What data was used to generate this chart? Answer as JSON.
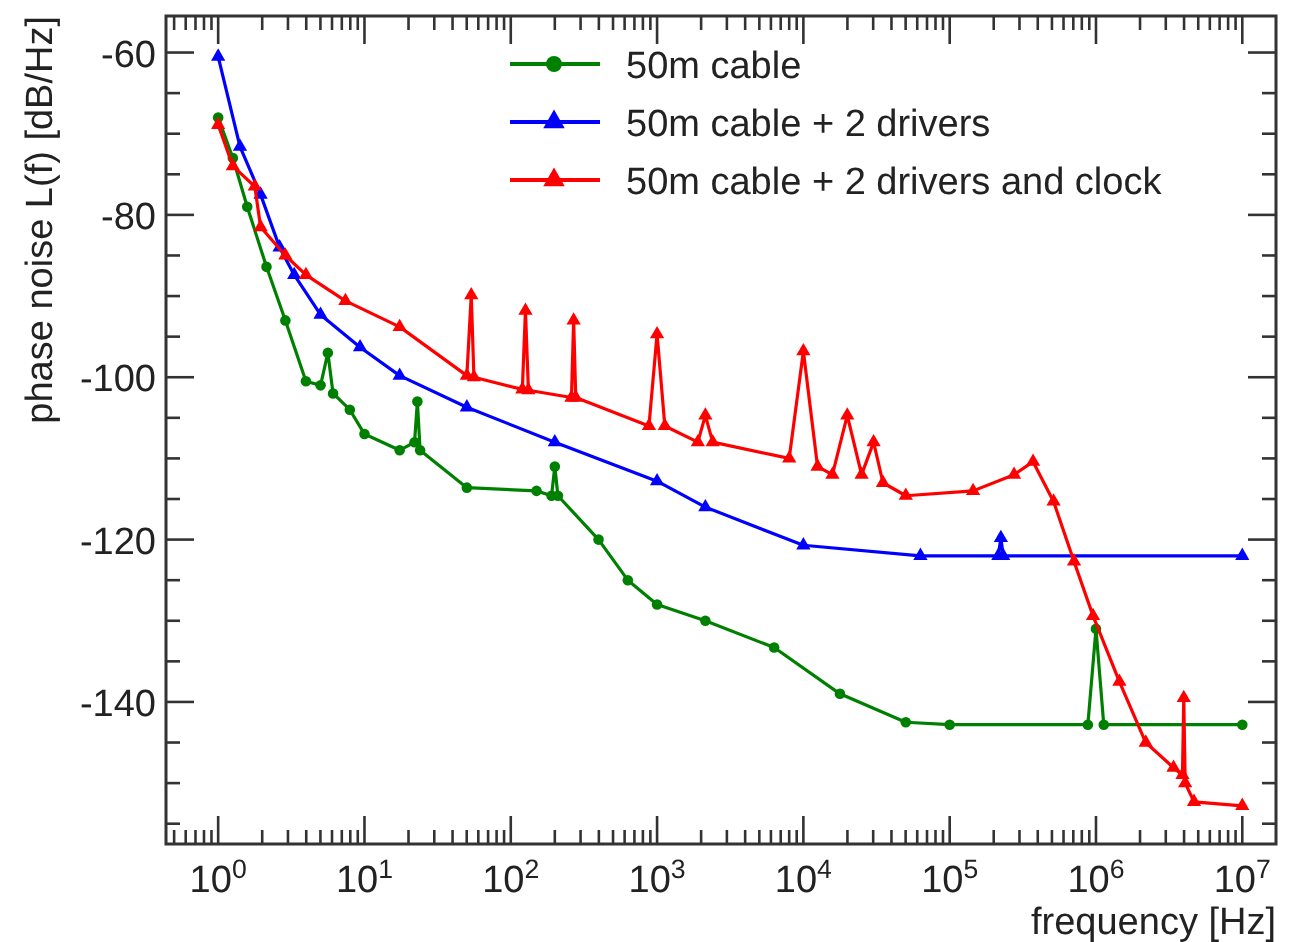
{
  "chart_data": {
    "type": "line",
    "xlabel": "frequency [Hz]",
    "ylabel": "phase noise L(f) [dB/Hz]",
    "log": "x",
    "xlim": [
      0.44,
      17000000
    ],
    "ylim": [
      -157.5,
      -55.5
    ],
    "xticks": [
      {
        "value": 0.5,
        "label": null
      },
      {
        "value": 0.6,
        "label": null
      },
      {
        "value": 0.7,
        "label": null
      },
      {
        "value": 0.8,
        "label": null
      },
      {
        "value": 0.9,
        "label": null
      },
      {
        "value": 1,
        "label": "10$^{0}$"
      },
      {
        "value": 2,
        "label": null
      },
      {
        "value": 3,
        "label": null
      },
      {
        "value": 4,
        "label": null
      },
      {
        "value": 5,
        "label": null
      },
      {
        "value": 6,
        "label": null
      },
      {
        "value": 7,
        "label": null
      },
      {
        "value": 8,
        "label": null
      },
      {
        "value": 9,
        "label": null
      },
      {
        "value": 10,
        "label": "10$^{1}$"
      },
      {
        "value": 20,
        "label": null
      },
      {
        "value": 30,
        "label": null
      },
      {
        "value": 40,
        "label": null
      },
      {
        "value": 50,
        "label": null
      },
      {
        "value": 60,
        "label": null
      },
      {
        "value": 70,
        "label": null
      },
      {
        "value": 80,
        "label": null
      },
      {
        "value": 90,
        "label": null
      },
      {
        "value": 100,
        "label": "10$^{2}$"
      },
      {
        "value": 200,
        "label": null
      },
      {
        "value": 300,
        "label": null
      },
      {
        "value": 400,
        "label": null
      },
      {
        "value": 500,
        "label": null
      },
      {
        "value": 600,
        "label": null
      },
      {
        "value": 700,
        "label": null
      },
      {
        "value": 800,
        "label": null
      },
      {
        "value": 900,
        "label": null
      },
      {
        "value": 1000,
        "label": "10$^{3}$"
      },
      {
        "value": 2000,
        "label": null
      },
      {
        "value": 3000,
        "label": null
      },
      {
        "value": 4000,
        "label": null
      },
      {
        "value": 5000,
        "label": null
      },
      {
        "value": 6000,
        "label": null
      },
      {
        "value": 7000,
        "label": null
      },
      {
        "value": 8000,
        "label": null
      },
      {
        "value": 9000,
        "label": null
      },
      {
        "value": 10000,
        "label": "10$^{4}$"
      },
      {
        "value": 20000,
        "label": null
      },
      {
        "value": 30000,
        "label": null
      },
      {
        "value": 40000,
        "label": null
      },
      {
        "value": 50000,
        "label": null
      },
      {
        "value": 60000,
        "label": null
      },
      {
        "value": 70000,
        "label": null
      },
      {
        "value": 80000,
        "label": null
      },
      {
        "value": 90000,
        "label": null
      },
      {
        "value": 100000,
        "label": "10$^{5}$"
      },
      {
        "value": 200000,
        "label": null
      },
      {
        "value": 300000,
        "label": null
      },
      {
        "value": 400000,
        "label": null
      },
      {
        "value": 500000,
        "label": null
      },
      {
        "value": 600000,
        "label": null
      },
      {
        "value": 700000,
        "label": null
      },
      {
        "value": 800000,
        "label": null
      },
      {
        "value": 900000,
        "label": null
      },
      {
        "value": 1000000,
        "label": "10$^{6}$"
      },
      {
        "value": 2000000,
        "label": null
      },
      {
        "value": 3000000,
        "label": null
      },
      {
        "value": 4000000,
        "label": null
      },
      {
        "value": 5000000,
        "label": null
      },
      {
        "value": 6000000,
        "label": null
      },
      {
        "value": 7000000,
        "label": null
      },
      {
        "value": 8000000,
        "label": null
      },
      {
        "value": 9000000,
        "label": null
      },
      {
        "value": 10000000,
        "label": "10$^{7}$"
      }
    ],
    "yticks": [
      {
        "value": -155,
        "label": null
      },
      {
        "value": -150,
        "label": null
      },
      {
        "value": -145,
        "label": null
      },
      -140,
      {
        "value": -135,
        "label": null
      },
      {
        "value": -130,
        "label": null
      },
      {
        "value": -125,
        "label": null
      },
      -120,
      {
        "value": -115,
        "label": null
      },
      {
        "value": -110,
        "label": null
      },
      {
        "value": -105,
        "label": null
      },
      -100,
      {
        "value": -95,
        "label": null
      },
      {
        "value": -90,
        "label": null
      },
      {
        "value": -85,
        "label": null
      },
      -80,
      {
        "value": -75,
        "label": null
      },
      {
        "value": -70,
        "label": null
      },
      {
        "value": -65,
        "label": null
      },
      -60
    ],
    "grid": false,
    "legend": "top right",
    "line_style": "solid",
    "series": [
      {
        "name": "50m cable",
        "color": "#008000",
        "marker": "circle",
        "x": [
          1,
          1.26,
          1.58,
          2.14,
          2.88,
          3.98,
          5.01,
          5.62,
          6.1,
          7.94,
          10,
          17.4,
          22,
          23,
          24,
          50.1,
          150,
          190,
          200,
          210,
          398,
          631,
          1000,
          2138,
          6310,
          17783,
          50119,
          100000,
          880000,
          1000000,
          1130000,
          10000000
        ],
        "values": [
          -68,
          -73,
          -79,
          -86.4,
          -93,
          -100.5,
          -101,
          -97,
          -102,
          -104,
          -107,
          -109,
          -108,
          -103,
          -109,
          -113.6,
          -114,
          -114.6,
          -111,
          -114.6,
          -120,
          -125,
          -128,
          -130,
          -133.3,
          -139,
          -142.5,
          -142.8,
          -142.8,
          -131,
          -142.8,
          -142.8
        ]
      },
      {
        "name": "50m cable + 2 drivers",
        "color": "#0000ff",
        "marker": "triangle",
        "x": [
          1,
          1.41,
          1.95,
          2.63,
          3.31,
          5.01,
          9.33,
          17.4,
          50.1,
          200,
          1000,
          2138,
          10000,
          63096,
          215000,
          223872,
          232000,
          10000000
        ],
        "values": [
          -60.5,
          -71.6,
          -77.5,
          -84,
          -87.4,
          -92.3,
          -96.3,
          -99.8,
          -103.7,
          -108,
          -112.8,
          -116,
          -120.7,
          -122,
          -122,
          -119.8,
          -122,
          -122
        ]
      },
      {
        "name": "50m cable + 2 drivers and clock",
        "color": "#ff0000",
        "marker": "triangle",
        "x": [
          1,
          1.26,
          1.78,
          1.95,
          2.88,
          3.98,
          7.41,
          17.4,
          50.1,
          53.7,
          56,
          120,
          126,
          132,
          260,
          269,
          278,
          880,
          1000,
          1130,
          1900,
          2138,
          2400,
          8000,
          10000,
          12500,
          15800,
          19953,
          25000,
          30200,
          35000,
          50119,
          144544,
          275423,
          371535,
          512861,
          707946,
          954993,
          1445440,
          2187762,
          3388442,
          3900000,
          3981072,
          4070000,
          4677351,
          10000000
        ],
        "values": [
          -68.9,
          -74,
          -76.5,
          -81.5,
          -85,
          -87.4,
          -90.6,
          -93.8,
          -99.8,
          -89.9,
          -100,
          -101.5,
          -91.8,
          -101.6,
          -102.5,
          -93,
          -102.5,
          -106,
          -94.7,
          -106,
          -108,
          -104.7,
          -108,
          -110,
          -96.8,
          -111,
          -112,
          -104.7,
          -112,
          -108,
          -113,
          -114.6,
          -114,
          -112,
          -110.4,
          -115.3,
          -122.7,
          -129.4,
          -137.5,
          -145,
          -148.1,
          -149,
          -139.5,
          -150,
          -152.3,
          -152.8
        ]
      }
    ]
  }
}
